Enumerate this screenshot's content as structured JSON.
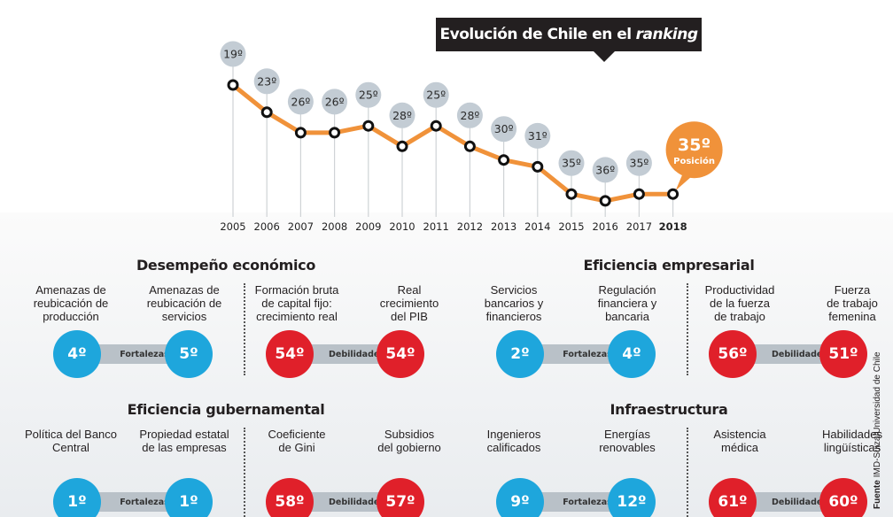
{
  "chart_data": {
    "type": "line",
    "title": "Evolución de Chile en el",
    "title_italic": "ranking",
    "xlabel": "",
    "ylabel": "",
    "y_inverted": true,
    "x": [
      "2005",
      "2006",
      "2007",
      "2008",
      "2009",
      "2010",
      "2011",
      "2012",
      "2013",
      "2014",
      "2015",
      "2016",
      "2017",
      "2018"
    ],
    "values": [
      19,
      23,
      26,
      26,
      25,
      28,
      25,
      28,
      30,
      31,
      35,
      36,
      35,
      35
    ],
    "labels": [
      "19º",
      "23º",
      "26º",
      "26º",
      "25º",
      "28º",
      "25º",
      "28º",
      "30º",
      "31º",
      "35º",
      "36º",
      "35º",
      "35º"
    ],
    "highlight": {
      "year": "2018",
      "label": "35º",
      "sublabel": "Posición"
    },
    "colors": {
      "line": "#f0923a",
      "bubble": "#c3ccd4",
      "highlight": "#f0923a",
      "marker": "#111111"
    },
    "grid": false
  },
  "sections": [
    {
      "title": "Desempeño económico",
      "strengths": {
        "label": "Fortalezas",
        "items": [
          {
            "label": [
              "Amenazas de",
              "reubicación de",
              "producción"
            ],
            "rank": "4º"
          },
          {
            "label": [
              "Amenazas de",
              "reubicación de",
              "servicios"
            ],
            "rank": "5º"
          }
        ]
      },
      "weaknesses": {
        "label": "Debilidades",
        "items": [
          {
            "label": [
              "Formación bruta",
              "de capital fijo:",
              "crecimiento real"
            ],
            "rank": "54º"
          },
          {
            "label": [
              "Real",
              "crecimiento",
              "del PIB"
            ],
            "rank": "54º"
          }
        ]
      }
    },
    {
      "title": "Eficiencia empresarial",
      "strengths": {
        "label": "Fortalezas",
        "items": [
          {
            "label": [
              "Servicios",
              "bancarios y",
              "financieros"
            ],
            "rank": "2º"
          },
          {
            "label": [
              "Regulación",
              "financiera y",
              "bancaria"
            ],
            "rank": "4º"
          }
        ]
      },
      "weaknesses": {
        "label": "Debilidades",
        "items": [
          {
            "label": [
              "Productividad",
              "de la fuerza",
              "de trabajo"
            ],
            "rank": "56º"
          },
          {
            "label": [
              "Fuerza",
              "de trabajo",
              "femenina"
            ],
            "rank": "51º"
          }
        ]
      }
    },
    {
      "title": "Eficiencia gubernamental",
      "strengths": {
        "label": "Fortalezas",
        "items": [
          {
            "label": [
              "Política del Banco",
              "Central"
            ],
            "rank": "1º"
          },
          {
            "label": [
              "Propiedad estatal",
              "de las empresas"
            ],
            "rank": "1º"
          }
        ]
      },
      "weaknesses": {
        "label": "Debilidades",
        "items": [
          {
            "label": [
              "Coeficiente",
              "de Gini"
            ],
            "rank": "58º"
          },
          {
            "label": [
              "Subsidios",
              "del gobierno"
            ],
            "rank": "57º"
          }
        ]
      }
    },
    {
      "title": "Infraestructura",
      "strengths": {
        "label": "Fortalezas",
        "items": [
          {
            "label": [
              "Ingenieros",
              "calificados"
            ],
            "rank": "9º"
          },
          {
            "label": [
              "Energías",
              "renovables"
            ],
            "rank": "12º"
          }
        ]
      },
      "weaknesses": {
        "label": "Debilidades",
        "items": [
          {
            "label": [
              "Asistencia",
              "médica"
            ],
            "rank": "61º"
          },
          {
            "label": [
              "Habilidades",
              "lingüísticas"
            ],
            "rank": "60º"
          }
        ]
      }
    }
  ],
  "source": {
    "prefix": "Fuente",
    "text": "IMD-Suiza/Universidad de Chile"
  }
}
